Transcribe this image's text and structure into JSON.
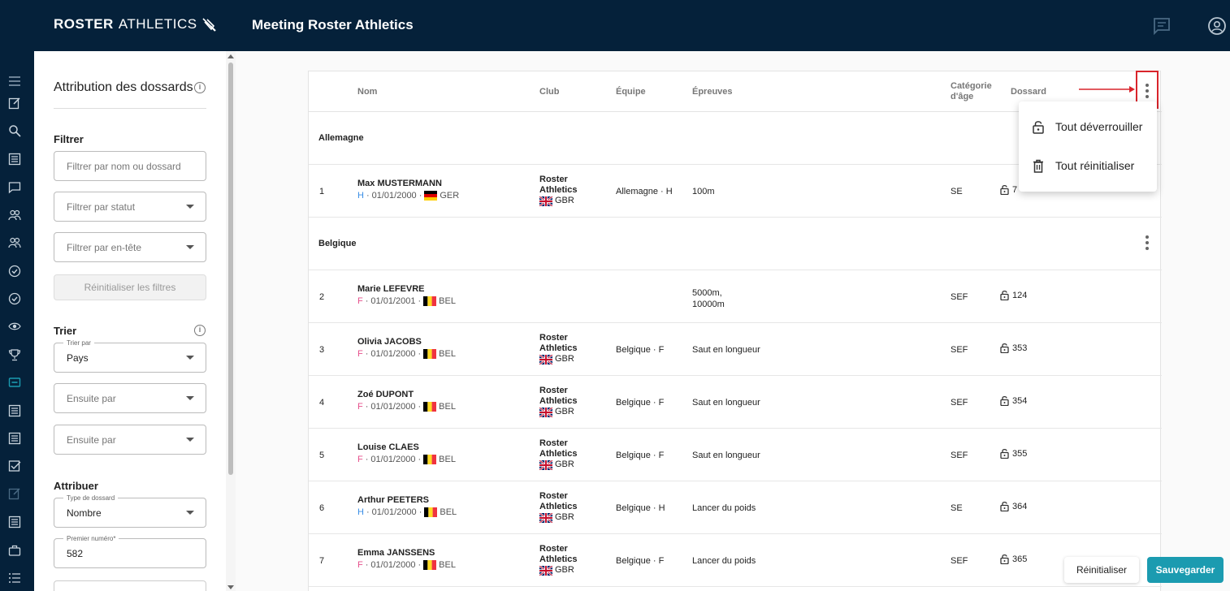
{
  "header": {
    "logo_bold": "ROSTER",
    "logo_light": "ATHLETICS",
    "title": "Meeting Roster Athletics"
  },
  "panel": {
    "title": "Attribution des dossards",
    "filter_section": "Filtrer",
    "filter_name_placeholder": "Filtrer par nom ou dossard",
    "filter_status_placeholder": "Filtrer par statut",
    "filter_header_placeholder": "Filtrer par en-tête",
    "reset_filters": "Réinitialiser les filtres",
    "sort_section": "Trier",
    "sort_by_label": "Trier par",
    "sort_by_value": "Pays",
    "then_by_1": "Ensuite par",
    "then_by_2": "Ensuite par",
    "assign_section": "Attribuer",
    "bib_type_label": "Type de dossard",
    "bib_type_value": "Nombre",
    "first_number_label": "Premier numéro*",
    "first_number_value": "582"
  },
  "table": {
    "headers": {
      "name": "Nom",
      "club": "Club",
      "team": "Équipe",
      "events": "Épreuves",
      "category_line1": "Catégorie",
      "category_line2": "d'âge",
      "bib": "Dossard"
    },
    "groups": [
      "Allemagne",
      "Belgique"
    ],
    "rows": [
      {
        "num": "1",
        "name": "Max MUSTERMANN",
        "sex": "H",
        "dob": "01/01/2000",
        "country": "GER",
        "club_line1": "Roster",
        "club_line2": "Athletics",
        "club_country": "GBR",
        "team": "Allemagne · H",
        "events": "100m",
        "events_line2": "",
        "category": "SE",
        "bib": "7"
      },
      {
        "num": "2",
        "name": "Marie LEFEVRE",
        "sex": "F",
        "dob": "01/01/2001",
        "country": "BEL",
        "club_line1": "",
        "club_line2": "",
        "club_country": "",
        "team": "",
        "events": "5000m,",
        "events_line2": "10000m",
        "category": "SEF",
        "bib": "124"
      },
      {
        "num": "3",
        "name": "Olivia JACOBS",
        "sex": "F",
        "dob": "01/01/2000",
        "country": "BEL",
        "club_line1": "Roster",
        "club_line2": "Athletics",
        "club_country": "GBR",
        "team": "Belgique · F",
        "events": "Saut en longueur",
        "events_line2": "",
        "category": "SEF",
        "bib": "353"
      },
      {
        "num": "4",
        "name": "Zoé DUPONT",
        "sex": "F",
        "dob": "01/01/2000",
        "country": "BEL",
        "club_line1": "Roster",
        "club_line2": "Athletics",
        "club_country": "GBR",
        "team": "Belgique · F",
        "events": "Saut en longueur",
        "events_line2": "",
        "category": "SEF",
        "bib": "354"
      },
      {
        "num": "5",
        "name": "Louise CLAES",
        "sex": "F",
        "dob": "01/01/2000",
        "country": "BEL",
        "club_line1": "Roster",
        "club_line2": "Athletics",
        "club_country": "GBR",
        "team": "Belgique · F",
        "events": "Saut en longueur",
        "events_line2": "",
        "category": "SEF",
        "bib": "355"
      },
      {
        "num": "6",
        "name": "Arthur PEETERS",
        "sex": "H",
        "dob": "01/01/2000",
        "country": "BEL",
        "club_line1": "Roster",
        "club_line2": "Athletics",
        "club_country": "GBR",
        "team": "Belgique · H",
        "events": "Lancer du poids",
        "events_line2": "",
        "category": "SE",
        "bib": "364"
      },
      {
        "num": "7",
        "name": "Emma JANSSENS",
        "sex": "F",
        "dob": "01/01/2000",
        "country": "BEL",
        "club_line1": "Roster",
        "club_line2": "Athletics",
        "club_country": "GBR",
        "team": "Belgique · F",
        "events": "Lancer du poids",
        "events_line2": "",
        "category": "SEF",
        "bib": "365"
      }
    ]
  },
  "menu": {
    "unlock_all": "Tout déverrouiller",
    "reset_all": "Tout réinitialiser"
  },
  "actions": {
    "reset": "Réinitialiser",
    "save": "Sauvegarder"
  },
  "colors": {
    "nav": "#05213a",
    "accent": "#1b9bb0",
    "highlight": "#d9242b",
    "male": "#3a8ee6",
    "female": "#e6508c"
  },
  "icons": [
    "menu-icon",
    "edit-icon",
    "search-icon",
    "list-icon",
    "chat-icon",
    "group-icon",
    "people-icon",
    "check-circle-icon",
    "check-circle-icon",
    "eye-icon",
    "trophy-icon",
    "bib-icon",
    "list-icon",
    "list-icon",
    "checkbox-icon",
    "edit-disabled-icon",
    "list-icon",
    "briefcase-icon",
    "list-bullets-icon"
  ]
}
